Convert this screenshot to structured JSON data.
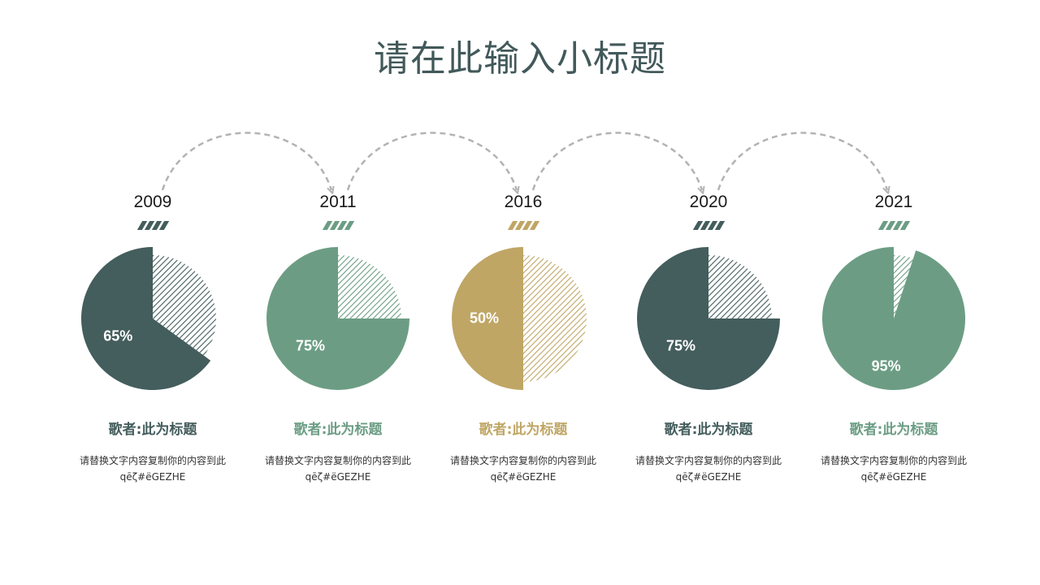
{
  "title": "请在此输入小标题",
  "colors": {
    "dark": "#445d5d",
    "green": "#6c9d84",
    "gold": "#bfa665",
    "arrow": "#b3b3b3"
  },
  "chart_data": {
    "type": "pie",
    "title": "",
    "items": [
      {
        "year": "2009",
        "percent_label": "65%",
        "value": 65,
        "name": "歌者:此为标题",
        "desc_line1": "请替换文字内容复制你的内容到此",
        "desc_line2": "qēζ#ëGEZHE",
        "color": "dark"
      },
      {
        "year": "2011",
        "percent_label": "75%",
        "value": 75,
        "name": "歌者:此为标题",
        "desc_line1": "请替换文字内容复制你的内容到此",
        "desc_line2": "qēζ#ëGEZHE",
        "color": "green"
      },
      {
        "year": "2016",
        "percent_label": "50%",
        "value": 50,
        "name": "歌者:此为标题",
        "desc_line1": "请替换文字内容复制你的内容到此",
        "desc_line2": "qēζ#ëGEZHE",
        "color": "gold"
      },
      {
        "year": "2020",
        "percent_label": "75%",
        "value": 75,
        "name": "歌者:此为标题",
        "desc_line1": "请替换文字内容复制你的内容到此",
        "desc_line2": "qēζ#ëGEZHE",
        "color": "dark"
      },
      {
        "year": "2021",
        "percent_label": "95%",
        "value": 95,
        "name": "歌者:此为标题",
        "desc_line1": "请替换文字内容复制你的内容到此",
        "desc_line2": "qēζ#ëGEZHE",
        "color": "green"
      }
    ]
  }
}
